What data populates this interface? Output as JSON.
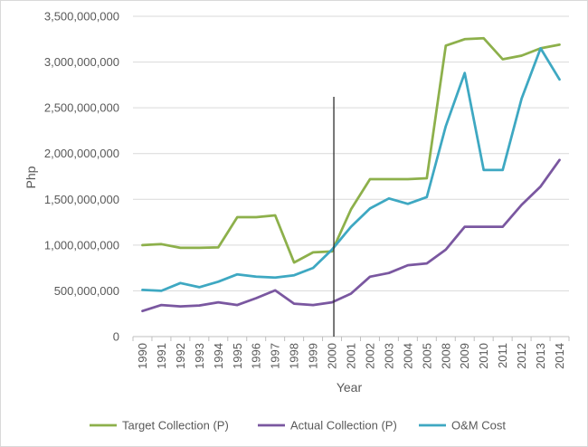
{
  "chart_data": {
    "type": "line",
    "xlabel": "Year",
    "ylabel": "Php",
    "ylim": [
      0,
      3500000000
    ],
    "ytick_step": 500000000,
    "y_tick_labels": [
      "0",
      "500,000,000",
      "1,000,000,000",
      "1,500,000,000",
      "2,000,000,000",
      "2,500,000,000",
      "3,000,000,000",
      "3,500,000,000"
    ],
    "grid": "horizontal",
    "legend_position": "bottom",
    "categories": [
      "1990",
      "1991",
      "1992",
      "1993",
      "1994",
      "1995",
      "1996",
      "1997",
      "1998",
      "1999",
      "2000",
      "2001",
      "2002",
      "2003",
      "2004",
      "2005",
      "2008",
      "2009",
      "2010",
      "2011",
      "2012",
      "2013",
      "2014"
    ],
    "series": [
      {
        "name": "Target Collection (P)",
        "color": "#8db04b",
        "values": [
          1000000000,
          1010000000,
          970000000,
          970000000,
          975000000,
          1305000000,
          1305000000,
          1325000000,
          810000000,
          920000000,
          930000000,
          1390000000,
          1720000000,
          1720000000,
          1720000000,
          1730000000,
          3180000000,
          3250000000,
          3260000000,
          3030000000,
          3070000000,
          3150000000,
          3190000000
        ]
      },
      {
        "name": "Actual Collection (P)",
        "color": "#7a57a0",
        "values": [
          280000000,
          345000000,
          330000000,
          340000000,
          375000000,
          345000000,
          420000000,
          505000000,
          360000000,
          345000000,
          375000000,
          470000000,
          655000000,
          695000000,
          780000000,
          800000000,
          950000000,
          1200000000,
          1200000000,
          1200000000,
          1440000000,
          1640000000,
          1930000000
        ]
      },
      {
        "name": "O&M Cost",
        "color": "#3ea8c2",
        "values": [
          510000000,
          500000000,
          585000000,
          540000000,
          600000000,
          680000000,
          655000000,
          645000000,
          670000000,
          750000000,
          950000000,
          1200000000,
          1400000000,
          1510000000,
          1450000000,
          1525000000,
          2300000000,
          2880000000,
          1820000000,
          1820000000,
          2600000000,
          3150000000,
          2810000000
        ]
      }
    ],
    "annotation": {
      "type": "vertical-line",
      "category": "2000",
      "color": "#262626",
      "y_top": 2620000000
    }
  }
}
